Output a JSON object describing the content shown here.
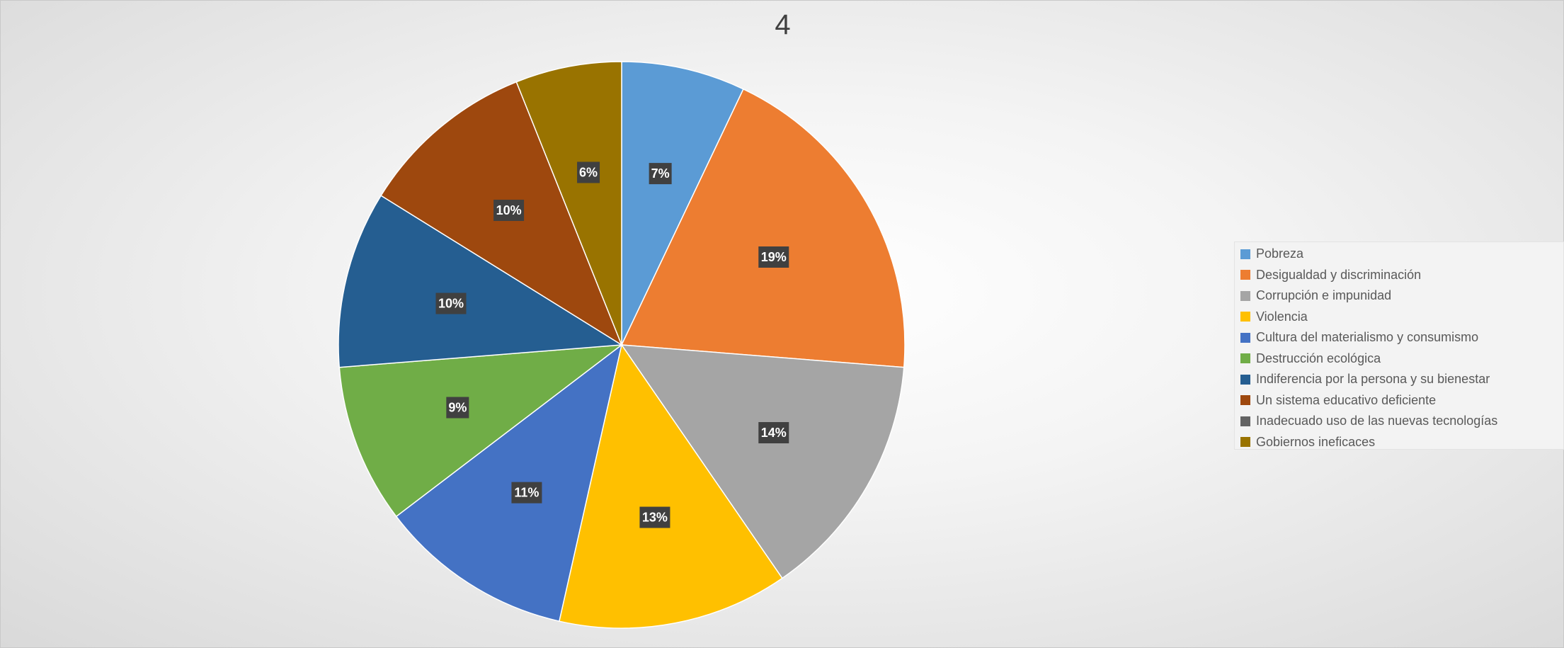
{
  "chart_data": {
    "type": "pie",
    "title": "4",
    "categories": [
      "Pobreza",
      "Desigualdad y discriminación",
      "Corrupción e impunidad",
      "Violencia",
      "Cultura del materialismo y consumismo",
      "Destrucción ecológica",
      "Indiferencia por la persona y su bienestar",
      "Un sistema educativo deficiente",
      "Inadecuado uso de las nuevas tecnologías",
      "Gobiernos ineficaces"
    ],
    "values": [
      7,
      19,
      14,
      13,
      11,
      9,
      10,
      10,
      0,
      6
    ],
    "data_labels": [
      "7%",
      "19%",
      "14%",
      "13%",
      "11%",
      "9%",
      "10%",
      "10%",
      "",
      "6%"
    ],
    "colors": [
      "#5b9bd5",
      "#ed7d31",
      "#a5a5a5",
      "#ffc000",
      "#4472c4",
      "#70ad47",
      "#255e91",
      "#9e480e",
      "#636363",
      "#997300"
    ],
    "legend_position": "right"
  }
}
